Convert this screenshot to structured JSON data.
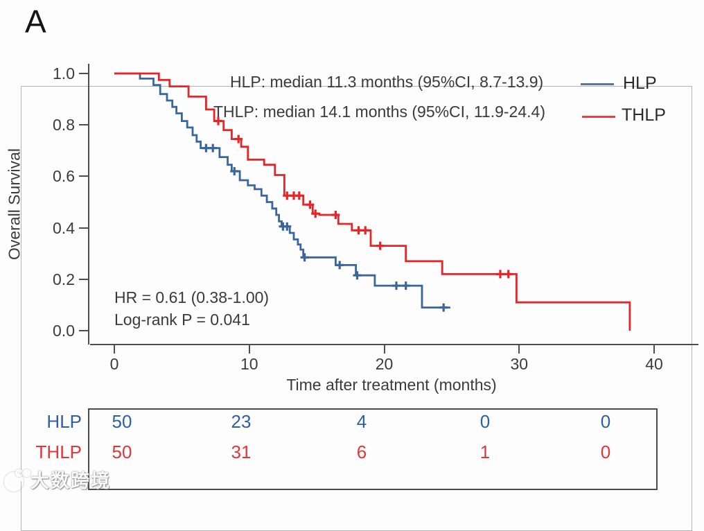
{
  "panel_label": "A",
  "watermark": {
    "text": "大数跨境"
  },
  "chart_data": {
    "type": "line",
    "subtype": "kaplan-meier-step",
    "title": "",
    "xlabel": "Time after treatment (months)",
    "ylabel": "Overall Survival",
    "xlim": [
      0,
      40
    ],
    "ylim": [
      0.0,
      1.0
    ],
    "grid": false,
    "legend_position": "top-right",
    "xticks": [
      {
        "t": 0,
        "label": "0"
      },
      {
        "t": 10,
        "label": "10"
      },
      {
        "t": 20,
        "label": "20"
      },
      {
        "t": 30,
        "label": "30"
      },
      {
        "t": 40,
        "label": "40"
      }
    ],
    "yticks": [
      {
        "v": 1.0,
        "label": "1.0"
      },
      {
        "v": 0.8,
        "label": "0.8"
      },
      {
        "v": 0.6,
        "label": "0.6"
      },
      {
        "v": 0.4,
        "label": "0.4"
      },
      {
        "v": 0.2,
        "label": "0.2"
      },
      {
        "v": 0.0,
        "label": "0.0"
      }
    ],
    "annotations": {
      "median_hlp": "HLP: median 11.3 months (95%CI, 8.7-13.9)",
      "median_thlp": "THLP: median 14.1 months (95%CI, 11.9-24.4)",
      "hazard_ratio": "HR = 0.61 (0.38-1.00)",
      "logrank": "Log-rank P = 0.041"
    },
    "legend": [
      {
        "label": "HLP",
        "color": "#5b7693"
      },
      {
        "label": "THLP",
        "color": "#ee3d44"
      }
    ],
    "series": [
      {
        "name": "HLP",
        "color": "#3a669c",
        "steps": [
          [
            0,
            1.0
          ],
          [
            1.9,
            0.98
          ],
          [
            2.9,
            0.955
          ],
          [
            3.4,
            0.92
          ],
          [
            3.9,
            0.895
          ],
          [
            4.3,
            0.87
          ],
          [
            4.6,
            0.845
          ],
          [
            5.0,
            0.815
          ],
          [
            5.4,
            0.79
          ],
          [
            5.8,
            0.76
          ],
          [
            6.1,
            0.735
          ],
          [
            6.4,
            0.71
          ],
          [
            7.8,
            0.675
          ],
          [
            8.4,
            0.645
          ],
          [
            8.7,
            0.62
          ],
          [
            9.3,
            0.585
          ],
          [
            9.9,
            0.565
          ],
          [
            10.4,
            0.55
          ],
          [
            10.9,
            0.525
          ],
          [
            11.3,
            0.5
          ],
          [
            11.7,
            0.475
          ],
          [
            12.0,
            0.45
          ],
          [
            12.2,
            0.425
          ],
          [
            12.4,
            0.405
          ],
          [
            13.0,
            0.38
          ],
          [
            13.3,
            0.355
          ],
          [
            13.6,
            0.335
          ],
          [
            13.8,
            0.315
          ],
          [
            14.0,
            0.285
          ],
          [
            16.4,
            0.255
          ],
          [
            17.9,
            0.215
          ],
          [
            19.3,
            0.175
          ],
          [
            22.8,
            0.09
          ]
        ],
        "end_t": 24.9,
        "censors": [
          6.8,
          7.3,
          8.9,
          12.5,
          12.8,
          14.1,
          16.7,
          18.0,
          20.9,
          21.6,
          24.4
        ]
      },
      {
        "name": "THLP",
        "color": "#e52528",
        "steps": [
          [
            0,
            1.0
          ],
          [
            3.3,
            0.975
          ],
          [
            4.1,
            0.95
          ],
          [
            5.5,
            0.91
          ],
          [
            6.8,
            0.86
          ],
          [
            7.4,
            0.815
          ],
          [
            8.1,
            0.78
          ],
          [
            8.7,
            0.745
          ],
          [
            9.4,
            0.715
          ],
          [
            9.9,
            0.665
          ],
          [
            11.1,
            0.645
          ],
          [
            11.9,
            0.605
          ],
          [
            12.6,
            0.525
          ],
          [
            14.0,
            0.49
          ],
          [
            14.7,
            0.455
          ],
          [
            15.2,
            0.45
          ],
          [
            16.6,
            0.415
          ],
          [
            17.6,
            0.39
          ],
          [
            19.0,
            0.33
          ],
          [
            21.6,
            0.27
          ],
          [
            24.3,
            0.22
          ],
          [
            29.8,
            0.11
          ],
          [
            38.2,
            0.0
          ]
        ],
        "end_t": 38.2,
        "censors": [
          7.7,
          9.2,
          12.8,
          13.3,
          13.7,
          14.5,
          14.9,
          16.4,
          18.1,
          18.6,
          19.7,
          28.6,
          29.2
        ]
      }
    ],
    "risk_table": {
      "rows": [
        {
          "label": "HLP",
          "color": "#2e5fa5",
          "values": [
            "50",
            "23",
            "4",
            "0",
            "0"
          ]
        },
        {
          "label": "THLP",
          "color": "#e4353b",
          "values": [
            "50",
            "31",
            "6",
            "1",
            "0"
          ]
        }
      ]
    }
  }
}
